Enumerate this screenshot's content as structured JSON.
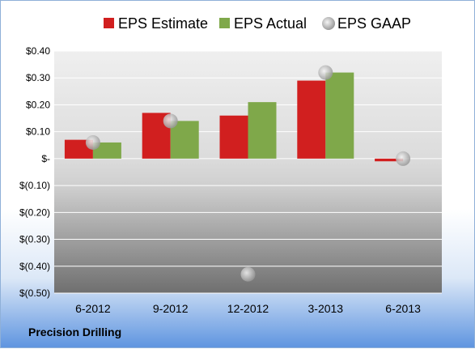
{
  "company_name": "Precision Drilling",
  "colors": {
    "estimate": "#d11f1f",
    "actual": "#7fa84a",
    "gaap": "#b8b8b8"
  },
  "chart_data": {
    "type": "bar",
    "categories": [
      "6-2012",
      "9-2012",
      "12-2012",
      "3-2013",
      "6-2013"
    ],
    "series": [
      {
        "name": "EPS Estimate",
        "kind": "bar",
        "values": [
          0.07,
          0.17,
          0.16,
          0.29,
          -0.01
        ]
      },
      {
        "name": "EPS Actual",
        "kind": "bar",
        "values": [
          0.06,
          0.14,
          0.21,
          0.32,
          null
        ]
      },
      {
        "name": "EPS GAAP",
        "kind": "scatter",
        "values": [
          0.06,
          0.14,
          -0.43,
          0.32,
          0.0
        ]
      }
    ],
    "ylim": [
      -0.5,
      0.4
    ],
    "yticks": [
      0.4,
      0.3,
      0.2,
      0.1,
      0.0,
      -0.1,
      -0.2,
      -0.3,
      -0.4,
      -0.5
    ],
    "ytick_labels": [
      "$0.40",
      "$0.30",
      "$0.20",
      "$0.10",
      "$-",
      "$(0.10)",
      "$(0.20)",
      "$(0.30)",
      "$(0.40)",
      "$(0.50)"
    ],
    "legend_position": "top",
    "grid": true
  }
}
